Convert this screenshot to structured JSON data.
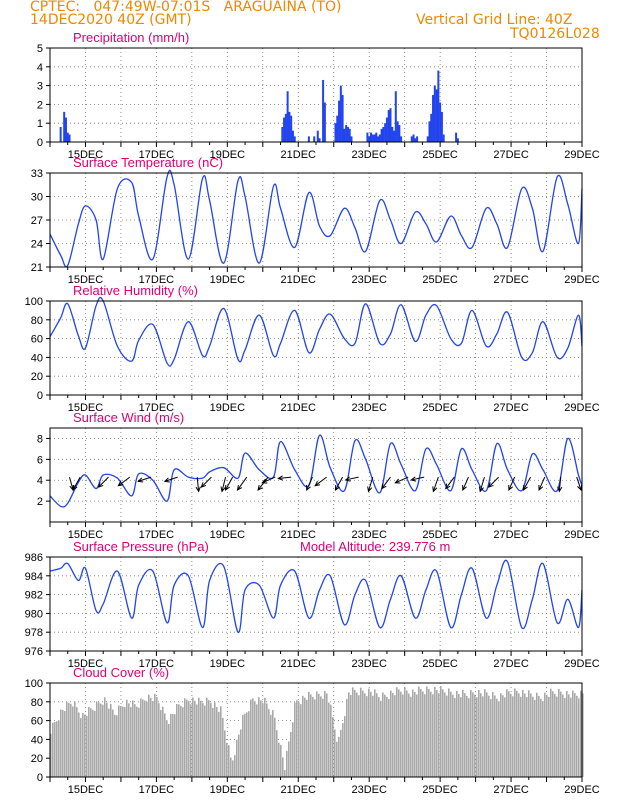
{
  "header": {
    "line1": "CPTEC:   047:49W-07:01S   ARAGUAINA (TO)",
    "line2": "14DEC2020 40Z (GMT)",
    "right1": "Vertical Grid Line: 40Z",
    "right2": "TQ0126L028"
  },
  "colors": {
    "header": "#ee8800",
    "title": "#dd0077",
    "series": "#2244ee",
    "cloud": "#a8a8a8",
    "arrow": "#000000"
  },
  "chart_data": [
    {
      "type": "bar",
      "title": "Precipitation (mm/h)",
      "ylim": [
        0,
        5
      ],
      "yticks": [
        0,
        1,
        2,
        3,
        4,
        5
      ],
      "xlim": [
        14,
        29
      ],
      "xticks": [
        "15DEC",
        "17DEC",
        "19DEC",
        "21DEC",
        "23DEC",
        "25DEC",
        "27DEC",
        "29DEC"
      ],
      "grid": "dotted",
      "series": [
        {
          "x": [
            14.3,
            14.4,
            14.45,
            14.5,
            14.55,
            20.55,
            20.6,
            20.65,
            20.7,
            20.75,
            20.8,
            20.85,
            20.9,
            21.3,
            21.45,
            21.55,
            21.6,
            21.7,
            21.75,
            22.05,
            22.1,
            22.15,
            22.2,
            22.25,
            22.3,
            22.35,
            22.4,
            22.45,
            22.5,
            22.95,
            23.0,
            23.05,
            23.1,
            23.15,
            23.2,
            23.25,
            23.3,
            23.35,
            23.4,
            23.45,
            23.5,
            23.55,
            23.6,
            23.65,
            23.7,
            23.75,
            23.8,
            23.85,
            23.9,
            24.2,
            24.25,
            24.3,
            24.35,
            24.65,
            24.7,
            24.75,
            24.8,
            24.85,
            24.9,
            24.95,
            25.0,
            25.05,
            25.1,
            25.45,
            25.5
          ],
          "values": [
            0.8,
            1.6,
            1.3,
            0.5,
            0.4,
            0.8,
            1.3,
            1.5,
            2.7,
            1.6,
            1.4,
            0.6,
            0.3,
            0.3,
            0.3,
            0.6,
            0.2,
            3.3,
            2.1,
            1.0,
            1.4,
            2.2,
            3.0,
            2.5,
            0.7,
            0.9,
            0.8,
            0.7,
            0.3,
            0.5,
            0.3,
            0.5,
            0.4,
            0.4,
            0.5,
            0.3,
            0.4,
            0.7,
            0.8,
            1.0,
            1.3,
            1.7,
            1.8,
            0.8,
            0.6,
            2.7,
            1.1,
            0.9,
            0.3,
            0.3,
            0.4,
            0.2,
            0.3,
            0.3,
            1.1,
            1.5,
            2.5,
            3.0,
            2.8,
            3.8,
            2.1,
            1.6,
            0.4,
            0.5,
            0.2
          ]
        }
      ]
    },
    {
      "type": "line",
      "title": "Surface Temperature (nC)",
      "ylim": [
        21,
        33
      ],
      "yticks": [
        21,
        24,
        27,
        30,
        33
      ],
      "xlim": [
        14,
        29
      ],
      "xticks": [
        "15DEC",
        "17DEC",
        "19DEC",
        "21DEC",
        "23DEC",
        "25DEC",
        "27DEC",
        "29DEC"
      ],
      "series": [
        {
          "x": [
            14.0,
            14.3,
            14.5,
            14.8,
            15.0,
            15.3,
            15.5,
            15.9,
            16.3,
            16.5,
            16.9,
            17.3,
            17.5,
            17.9,
            18.3,
            18.5,
            18.9,
            19.3,
            19.5,
            19.9,
            20.3,
            20.5,
            20.9,
            21.3,
            21.6,
            21.9,
            22.3,
            22.6,
            22.9,
            23.3,
            23.6,
            23.9,
            24.3,
            24.6,
            24.9,
            25.3,
            25.6,
            25.9,
            26.3,
            26.6,
            26.9,
            27.3,
            27.6,
            27.9,
            28.3,
            28.6,
            28.9,
            29.0
          ],
          "values": [
            25.2,
            22.5,
            21.2,
            26.5,
            28.8,
            27.0,
            22.0,
            31.0,
            31.8,
            27.5,
            22.0,
            32.5,
            31.5,
            22.0,
            32.3,
            29.5,
            21.5,
            32.0,
            30.0,
            21.5,
            31.3,
            28.5,
            23.5,
            30.5,
            26.2,
            25.0,
            28.5,
            26.0,
            23.0,
            29.5,
            27.0,
            24.0,
            28.0,
            26.5,
            24.2,
            27.5,
            25.0,
            23.5,
            28.5,
            26.5,
            23.5,
            31.0,
            28.5,
            23.0,
            32.5,
            29.0,
            24.0,
            31.0
          ]
        }
      ]
    },
    {
      "type": "line",
      "title": "Relative Humidity (%)",
      "ylim": [
        0,
        100
      ],
      "yticks": [
        0,
        20,
        40,
        60,
        80,
        100
      ],
      "xlim": [
        14,
        29
      ],
      "xticks": [
        "15DEC",
        "17DEC",
        "19DEC",
        "21DEC",
        "23DEC",
        "25DEC",
        "27DEC",
        "29DEC"
      ],
      "series": [
        {
          "x": [
            14.0,
            14.3,
            14.5,
            14.8,
            15.0,
            15.3,
            15.5,
            15.9,
            16.3,
            16.5,
            16.9,
            17.3,
            17.5,
            17.9,
            18.3,
            18.5,
            18.9,
            19.3,
            19.5,
            19.9,
            20.3,
            20.5,
            20.9,
            21.3,
            21.6,
            21.9,
            22.3,
            22.6,
            22.9,
            23.3,
            23.6,
            23.9,
            24.3,
            24.6,
            24.9,
            25.3,
            25.6,
            25.9,
            26.3,
            26.6,
            26.9,
            27.3,
            27.6,
            27.9,
            28.3,
            28.6,
            28.9,
            29.0
          ],
          "values": [
            62,
            82,
            97,
            63,
            50,
            95,
            100,
            52,
            36,
            58,
            75,
            34,
            38,
            78,
            42,
            52,
            92,
            38,
            48,
            85,
            42,
            55,
            90,
            45,
            70,
            86,
            60,
            55,
            97,
            55,
            65,
            96,
            57,
            85,
            95,
            60,
            55,
            90,
            52,
            65,
            88,
            40,
            45,
            78,
            40,
            50,
            85,
            52
          ]
        }
      ]
    },
    {
      "type": "line",
      "title": "Surface Wind (m/s)",
      "ylim": [
        0,
        9
      ],
      "yticks": [
        2,
        4,
        6,
        8
      ],
      "xlim": [
        14,
        29
      ],
      "xticks": [
        "15DEC",
        "17DEC",
        "19DEC",
        "21DEC",
        "23DEC",
        "25DEC",
        "27DEC",
        "29DEC"
      ],
      "series": [
        {
          "x": [
            14.0,
            14.3,
            14.5,
            14.8,
            15.0,
            15.3,
            15.5,
            15.9,
            16.3,
            16.5,
            16.9,
            17.3,
            17.5,
            17.9,
            18.3,
            18.5,
            18.9,
            19.3,
            19.5,
            19.9,
            20.3,
            20.5,
            20.9,
            21.3,
            21.6,
            21.9,
            22.3,
            22.6,
            22.9,
            23.3,
            23.6,
            23.9,
            24.3,
            24.6,
            24.9,
            25.3,
            25.6,
            25.9,
            26.3,
            26.6,
            26.9,
            27.3,
            27.6,
            27.9,
            28.3,
            28.6,
            28.9,
            29.0
          ],
          "values": [
            2.5,
            1.5,
            1.8,
            3.8,
            4.5,
            3.2,
            4.5,
            4.2,
            2.5,
            4.6,
            4.0,
            2.0,
            5.0,
            4.3,
            4.2,
            4.8,
            5.2,
            4.2,
            6.6,
            5.0,
            4.3,
            7.7,
            5.0,
            3.5,
            8.3,
            5.2,
            3.0,
            7.8,
            6.0,
            2.8,
            7.5,
            5.5,
            3.0,
            7.0,
            5.5,
            3.0,
            7.0,
            5.0,
            3.0,
            7.5,
            5.0,
            3.0,
            6.5,
            5.0,
            3.0,
            8.0,
            4.5,
            3.5
          ]
        }
      ],
      "wind_vectors": [
        {
          "x": 14.55,
          "u": -0.25,
          "v": 0.9
        },
        {
          "x": 14.85,
          "u": 0.5,
          "v": 0.9
        },
        {
          "x": 15.65,
          "u": 0.7,
          "v": 0.7
        },
        {
          "x": 16.25,
          "u": 0.8,
          "v": 0.6
        },
        {
          "x": 16.85,
          "u": 0.9,
          "v": 0.3
        },
        {
          "x": 17.6,
          "u": 0.9,
          "v": 0.3
        },
        {
          "x": 18.15,
          "u": -0.1,
          "v": 1.0
        },
        {
          "x": 18.55,
          "u": 0.7,
          "v": 0.7
        },
        {
          "x": 18.95,
          "u": 0.25,
          "v": 1.0
        },
        {
          "x": 19.15,
          "u": 0.5,
          "v": 0.9
        },
        {
          "x": 19.55,
          "u": 0.65,
          "v": 0.9
        },
        {
          "x": 20.15,
          "u": 0.7,
          "v": 0.9
        },
        {
          "x": 20.35,
          "u": 0.9,
          "v": 0.4
        },
        {
          "x": 20.8,
          "u": 0.9,
          "v": 0.1
        },
        {
          "x": 21.4,
          "u": 0.4,
          "v": 0.9
        },
        {
          "x": 21.8,
          "u": 0.8,
          "v": 0.6
        },
        {
          "x": 22.25,
          "u": 0.5,
          "v": 0.9
        },
        {
          "x": 22.7,
          "u": 0.9,
          "v": 0.2
        },
        {
          "x": 23.1,
          "u": 0.3,
          "v": 1.0
        },
        {
          "x": 23.6,
          "u": 0.6,
          "v": 0.8
        },
        {
          "x": 24.1,
          "u": 0.9,
          "v": 0.4
        },
        {
          "x": 24.55,
          "u": 0.9,
          "v": 0.2
        },
        {
          "x": 24.95,
          "u": 0.35,
          "v": 1.0
        },
        {
          "x": 25.4,
          "u": 0.6,
          "v": 0.8
        },
        {
          "x": 25.8,
          "u": 0.4,
          "v": 0.9
        },
        {
          "x": 26.25,
          "u": 0.3,
          "v": 1.0
        },
        {
          "x": 26.65,
          "u": 0.7,
          "v": 0.7
        },
        {
          "x": 27.1,
          "u": 0.4,
          "v": 0.9
        },
        {
          "x": 27.55,
          "u": 0.5,
          "v": 0.9
        },
        {
          "x": 27.95,
          "u": 0.4,
          "v": 0.9
        },
        {
          "x": 28.4,
          "u": 0.1,
          "v": 1.0
        },
        {
          "x": 28.85,
          "u": -0.3,
          "v": 0.9
        }
      ]
    },
    {
      "type": "line",
      "title": "Surface Pressure (hPa)",
      "annotation": "Model Altitude: 239.776 m",
      "ylim": [
        976,
        986
      ],
      "yticks": [
        976,
        978,
        980,
        982,
        984,
        986
      ],
      "xlim": [
        14,
        29
      ],
      "xticks": [
        "15DEC",
        "17DEC",
        "19DEC",
        "21DEC",
        "23DEC",
        "25DEC",
        "27DEC",
        "29DEC"
      ],
      "series": [
        {
          "x": [
            14.0,
            14.3,
            14.5,
            14.8,
            15.0,
            15.3,
            15.5,
            15.9,
            16.3,
            16.5,
            16.9,
            17.3,
            17.5,
            17.9,
            18.3,
            18.5,
            18.9,
            19.3,
            19.5,
            19.9,
            20.3,
            20.5,
            20.9,
            21.3,
            21.6,
            21.9,
            22.3,
            22.6,
            22.9,
            23.3,
            23.6,
            23.9,
            24.3,
            24.6,
            24.9,
            25.3,
            25.6,
            25.9,
            26.3,
            26.6,
            26.9,
            27.3,
            27.6,
            27.9,
            28.3,
            28.6,
            28.9,
            29.0
          ],
          "values": [
            984.5,
            984.8,
            985.3,
            983.5,
            984.8,
            980.3,
            981.0,
            984.5,
            979.5,
            983.0,
            984.5,
            979.0,
            983.0,
            984.0,
            978.5,
            983.5,
            985.0,
            978.0,
            982.5,
            983.0,
            979.5,
            983.0,
            984.5,
            979.5,
            982.5,
            984.0,
            978.8,
            982.0,
            983.5,
            978.5,
            981.5,
            984.0,
            979.5,
            982.5,
            984.5,
            978.5,
            982.0,
            984.8,
            979.5,
            983.0,
            985.5,
            978.5,
            981.5,
            985.3,
            979.0,
            981.5,
            978.5,
            982.5
          ]
        }
      ]
    },
    {
      "type": "bar",
      "title": "Cloud Cover (%)",
      "ylim": [
        0,
        100
      ],
      "yticks": [
        0,
        20,
        40,
        60,
        80,
        100
      ],
      "xlim": [
        14,
        29
      ],
      "xticks": [
        "15DEC",
        "17DEC",
        "19DEC",
        "21DEC",
        "23DEC",
        "25DEC",
        "27DEC",
        "29DEC"
      ],
      "series": [
        {
          "x": [
            14.0,
            14.3,
            14.6,
            14.9,
            15.2,
            15.5,
            15.8,
            16.1,
            16.4,
            16.7,
            17.0,
            17.3,
            17.6,
            17.9,
            18.2,
            18.5,
            18.8,
            19.1,
            19.4,
            19.7,
            20.0,
            20.3,
            20.6,
            20.9,
            21.2,
            21.5,
            21.8,
            22.1,
            22.4,
            22.7,
            23.0,
            23.3,
            23.6,
            23.9,
            24.2,
            24.5,
            24.8,
            25.1,
            25.4,
            25.7,
            26.0,
            26.3,
            26.6,
            26.9,
            27.2,
            27.5,
            27.8,
            28.1,
            28.4,
            28.7,
            29.0
          ],
          "values": [
            55,
            75,
            85,
            70,
            78,
            88,
            72,
            85,
            80,
            90,
            88,
            65,
            80,
            88,
            84,
            86,
            75,
            20,
            65,
            88,
            86,
            70,
            15,
            85,
            90,
            92,
            94,
            40,
            95,
            96,
            96,
            90,
            94,
            97,
            95,
            97,
            98,
            96,
            94,
            92,
            95,
            93,
            90,
            94,
            96,
            92,
            90,
            94,
            95,
            92,
            93
          ]
        }
      ]
    }
  ]
}
